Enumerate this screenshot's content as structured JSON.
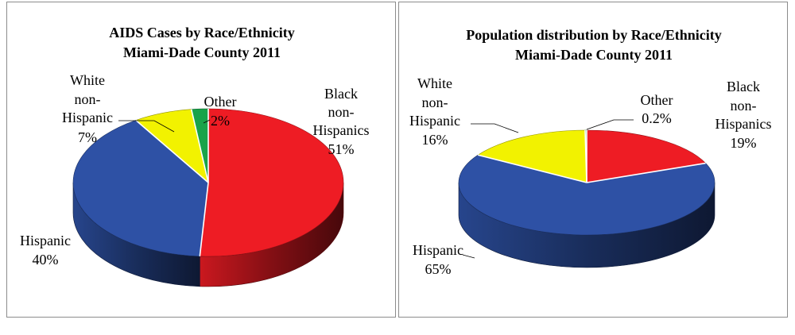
{
  "colors": {
    "Black non-Hispanics": "#ee1c24",
    "Hispanic": "#2e51a5",
    "White non-Hispanic": "#f2f200",
    "Other": "#19a34a"
  },
  "chart_data": [
    {
      "type": "pie",
      "title": [
        "AIDS Cases by Race/Ethnicity",
        "Miami-Dade County 2011"
      ],
      "slices": [
        {
          "key": "Black non-Hispanics",
          "label": [
            "Black",
            "non-",
            "Hispanics"
          ],
          "pct_text": "51%",
          "value": 51
        },
        {
          "key": "Hispanic",
          "label": [
            "Hispanic"
          ],
          "pct_text": "40%",
          "value": 40
        },
        {
          "key": "White non-Hispanic",
          "label": [
            "White",
            "non-",
            "Hispanic"
          ],
          "pct_text": "7%",
          "value": 7
        },
        {
          "key": "Other",
          "label": [
            "Other"
          ],
          "pct_text": "2%",
          "value": 2
        }
      ]
    },
    {
      "type": "pie",
      "title": [
        "Population distribution by Race/Ethnicity",
        "Miami-Dade County 2011"
      ],
      "slices": [
        {
          "key": "Black non-Hispanics",
          "label": [
            "Black",
            "non-",
            "Hispanics"
          ],
          "pct_text": "19%",
          "value": 19
        },
        {
          "key": "Hispanic",
          "label": [
            "Hispanic"
          ],
          "pct_text": "65%",
          "value": 65
        },
        {
          "key": "White non-Hispanic",
          "label": [
            "White",
            "non-",
            "Hispanic"
          ],
          "pct_text": "16%",
          "value": 16
        },
        {
          "key": "Other",
          "label": [
            "Other"
          ],
          "pct_text": "0.2%",
          "value": 0.2
        }
      ]
    }
  ]
}
